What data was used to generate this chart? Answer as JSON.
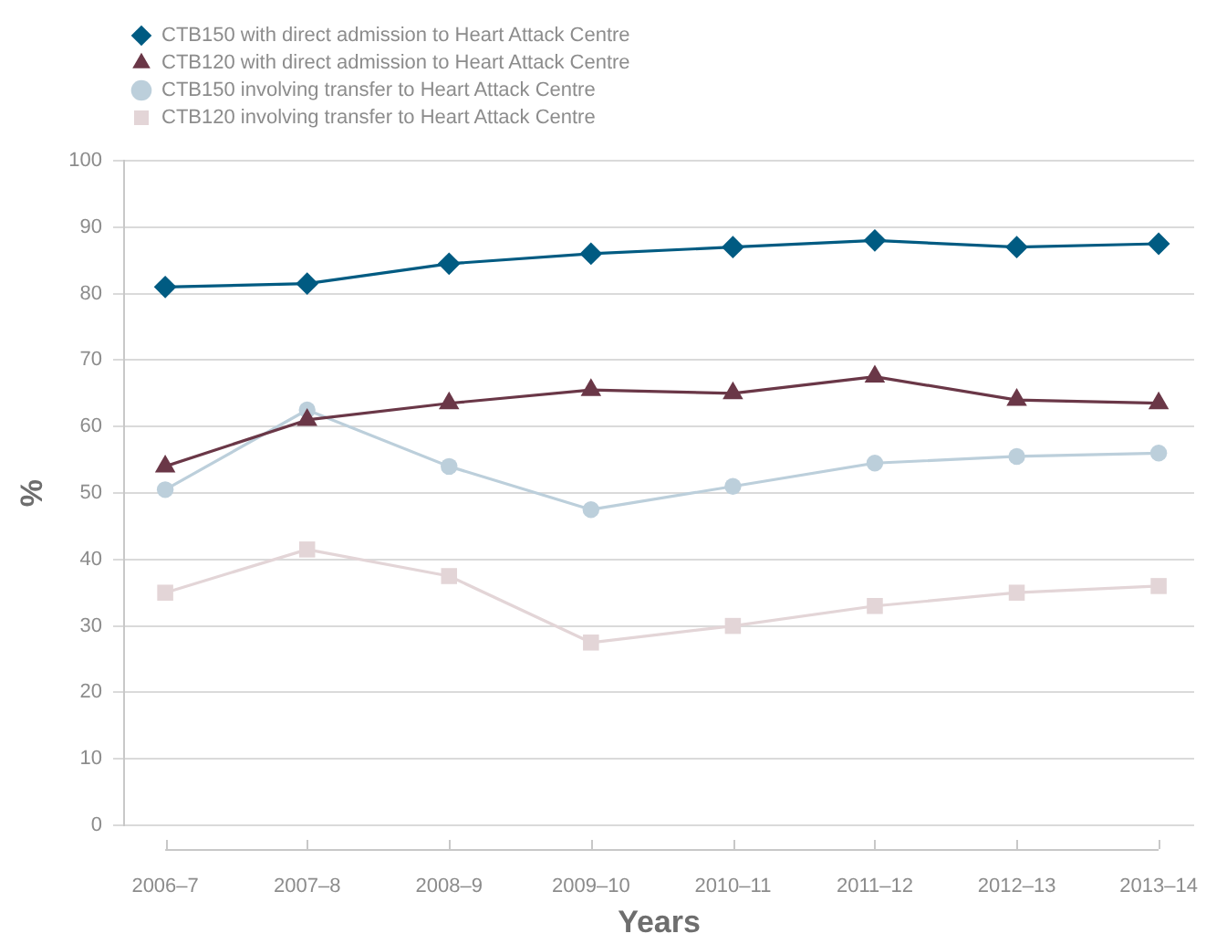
{
  "chart_data": {
    "type": "line",
    "xlabel": "Years",
    "ylabel": "%",
    "categories": [
      "2006–7",
      "2007–8",
      "2008–9",
      "2009–10",
      "2010–11",
      "2011–12",
      "2012–13",
      "2013–14"
    ],
    "series": [
      {
        "name": "CTB150 with direct admission to Heart Attack Centre",
        "color": "#005b82",
        "marker": "diamond",
        "values": [
          81,
          81.5,
          84.5,
          86,
          87,
          88,
          87,
          87.5
        ]
      },
      {
        "name": "CTB120 with direct admission to Heart Attack Centre",
        "color": "#6a3747",
        "marker": "triangle",
        "values": [
          54,
          61,
          63.5,
          65.5,
          65,
          67.5,
          64,
          63.5
        ]
      },
      {
        "name": "CTB150 involving transfer to Heart Attack Centre",
        "color": "#bccfdb",
        "marker": "circle",
        "values": [
          50.5,
          62.5,
          54,
          47.5,
          51,
          54.5,
          55.5,
          56
        ]
      },
      {
        "name": "CTB120 involving transfer to Heart Attack Centre",
        "color": "#e3d5d7",
        "marker": "square",
        "values": [
          35,
          41.5,
          37.5,
          27.5,
          30,
          33,
          35,
          36
        ]
      }
    ],
    "ylim": [
      0,
      100
    ],
    "yticks": [
      0,
      10,
      20,
      30,
      40,
      50,
      60,
      70,
      80,
      90,
      100
    ],
    "grid": "y",
    "legend": "top left"
  }
}
